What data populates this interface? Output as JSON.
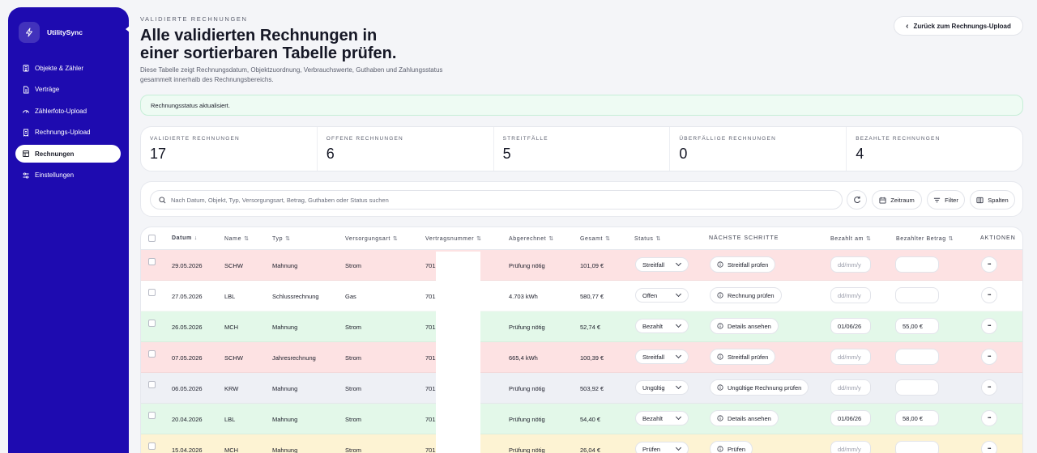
{
  "sidebar": {
    "brand": "UtilitySync",
    "items": [
      {
        "label": "Objekte & Zähler",
        "icon": "building-icon",
        "active": false
      },
      {
        "label": "Verträge",
        "icon": "document-icon",
        "active": false
      },
      {
        "label": "Zählerfoto-Upload",
        "icon": "gauge-icon",
        "active": false
      },
      {
        "label": "Rechnungs-Upload",
        "icon": "receipt-icon",
        "active": false
      },
      {
        "label": "Rechnungen",
        "icon": "table-icon",
        "active": true
      },
      {
        "label": "Einstellungen",
        "icon": "sliders-icon",
        "active": false
      }
    ]
  },
  "header": {
    "eyebrow": "VALIDIERTE RECHNUNGEN",
    "title": "Alle validierten Rechnungen in einer sortierbaren Tabelle prüfen.",
    "description": "Diese Tabelle zeigt Rechnungsdatum, Objektzuordnung, Verbrauchswerte, Guthaben und Zahlungsstatus gesammelt innerhalb des Rechnungsbereichs.",
    "back_label": "Zurück zum Rechnungs-Upload"
  },
  "banner": "Rechnungsstatus aktualisiert.",
  "stats": [
    {
      "label": "VALIDIERTE RECHNUNGEN",
      "value": "17"
    },
    {
      "label": "OFFENE RECHNUNGEN",
      "value": "6"
    },
    {
      "label": "STREITFÄLLE",
      "value": "5"
    },
    {
      "label": "ÜBERFÄLLIGE RECHNUNGEN",
      "value": "0"
    },
    {
      "label": "BEZAHLTE RECHNUNGEN",
      "value": "4"
    }
  ],
  "search": {
    "placeholder": "Nach Datum, Objekt, Typ, Versorgungsart, Betrag, Guthaben oder Status suchen"
  },
  "tools": {
    "reset": "",
    "date_range": "Zeitraum",
    "filter": "Filter",
    "columns": "Spalten"
  },
  "table": {
    "columns": {
      "datum": "Datum",
      "name": "Name",
      "typ": "Typ",
      "versorgungsart": "Versorgungsart",
      "vertragsnummer": "Vertragsnummer",
      "abgerechnet": "Abgerechnet",
      "gesamt": "Gesamt",
      "status": "Status",
      "next_steps": "NÄCHSTE SCHRITTE",
      "bezahlt_am": "Bezahlt am",
      "bezahlter_betrag": "Bezahlter Betrag",
      "aktionen": "AKTIONEN"
    },
    "rows": [
      {
        "date": "29.05.2026",
        "name": "SCHW",
        "type": "Mahnung",
        "utility": "Strom",
        "contract": "701",
        "billed": "Prüfung nötig",
        "total": "101,09 €",
        "status": "Streitfall",
        "next": "Streitfall prüfen",
        "paid_on": "dd/mm/y",
        "paid_amount": "",
        "bg": "#fde2e3"
      },
      {
        "date": "27.05.2026",
        "name": "LBL",
        "type": "Schlussrechnung",
        "utility": "Gas",
        "contract": "701",
        "billed": "4.703 kWh",
        "total": "580,77 €",
        "status": "Offen",
        "next": "Rechnung prüfen",
        "paid_on": "dd/mm/y",
        "paid_amount": "",
        "bg": "#ffffff"
      },
      {
        "date": "26.05.2026",
        "name": "MCH",
        "type": "Mahnung",
        "utility": "Strom",
        "contract": "701",
        "billed": "Prüfung nötig",
        "total": "52,74 €",
        "status": "Bezahlt",
        "next": "Details ansehen",
        "paid_on": "01/06/26",
        "paid_amount": "55,00 €",
        "bg": "#e3f8e9"
      },
      {
        "date": "07.05.2026",
        "name": "SCHW",
        "type": "Jahresrechnung",
        "utility": "Strom",
        "contract": "701",
        "billed": "665,4 kWh",
        "total": "100,39 €",
        "status": "Streitfall",
        "next": "Streitfall prüfen",
        "paid_on": "dd/mm/y",
        "paid_amount": "",
        "bg": "#fde2e3"
      },
      {
        "date": "06.05.2026",
        "name": "KRW",
        "type": "Mahnung",
        "utility": "Strom",
        "contract": "701",
        "billed": "Prüfung nötig",
        "total": "503,92 €",
        "status": "Ungültig",
        "next": "Ungültige Rechnung prüfen",
        "paid_on": "dd/mm/y",
        "paid_amount": "",
        "bg": "#eef0f5"
      },
      {
        "date": "20.04.2026",
        "name": "LBL",
        "type": "Mahnung",
        "utility": "Strom",
        "contract": "701",
        "billed": "Prüfung nötig",
        "total": "54,40 €",
        "status": "Bezahlt",
        "next": "Details ansehen",
        "paid_on": "01/06/26",
        "paid_amount": "58,00 €",
        "bg": "#e3f8e9"
      },
      {
        "date": "15.04.2026",
        "name": "MCH",
        "type": "Mahnung",
        "utility": "Strom",
        "contract": "701",
        "billed": "Prüfung nötig",
        "total": "26,04 €",
        "status": "Prüfen",
        "next": "Prüfen",
        "paid_on": "dd/mm/y",
        "paid_amount": "",
        "bg": "#fdf3d3"
      }
    ]
  }
}
